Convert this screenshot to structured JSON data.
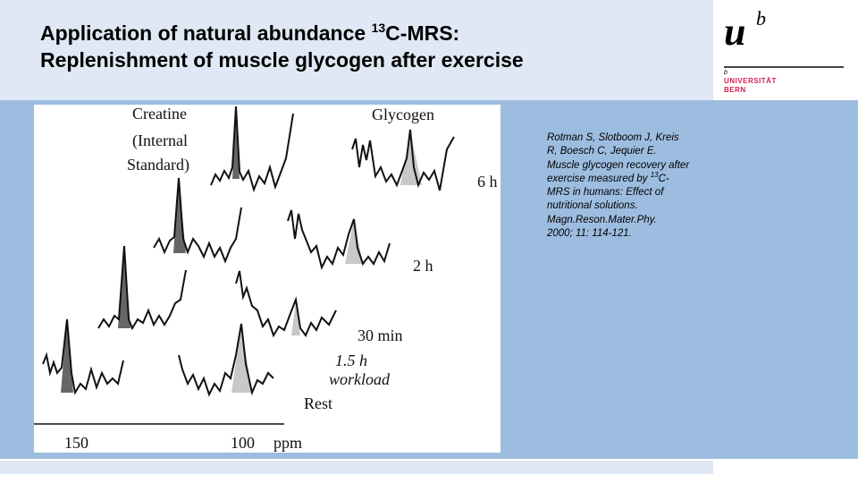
{
  "title": {
    "line1_pre": "Application of natural abundance ",
    "line1_sup": "13",
    "line1_post": "C-MRS:",
    "line2": "Replenishment of muscle glycogen after exercise"
  },
  "logo": {
    "mark": "u",
    "mark_sup": "b",
    "small_b": "b",
    "line1": "UNIVERSITÄT",
    "line2": "BERN"
  },
  "figure": {
    "label_creatine_1": "Creatine",
    "label_creatine_2": "(Internal",
    "label_creatine_3": "Standard)",
    "label_glycogen": "Glycogen",
    "time_6h": "6 h",
    "time_2h": "2 h",
    "time_30min": "30 min",
    "workload_1": "1.5 h",
    "workload_2": "workload",
    "rest": "Rest",
    "axis_150": "150",
    "axis_100": "100",
    "axis_unit": "ppm",
    "colors": {
      "creatine_fill": "#666666",
      "glycogen_fill": "#c8c8c8"
    }
  },
  "reference": {
    "line1": "Rotman S, Slotboom J, Kreis",
    "line2": "R, Boesch C, Jequier E.",
    "line3": "Muscle glycogen recovery  after",
    "line4_pre": "exercise measured  by ",
    "line4_sup": "13",
    "line4_post": "C-",
    "line5": "MRS in humans:  Effect of",
    "line6": "nutritional solutions.",
    "line7": "Magn.Reson.Mater.Phy.",
    "line8": "2000; 11: 114-121."
  },
  "colors": {
    "top_band": "#dfe8f4",
    "main_band": "#9dbde0",
    "logo_red": "#d6204e"
  }
}
